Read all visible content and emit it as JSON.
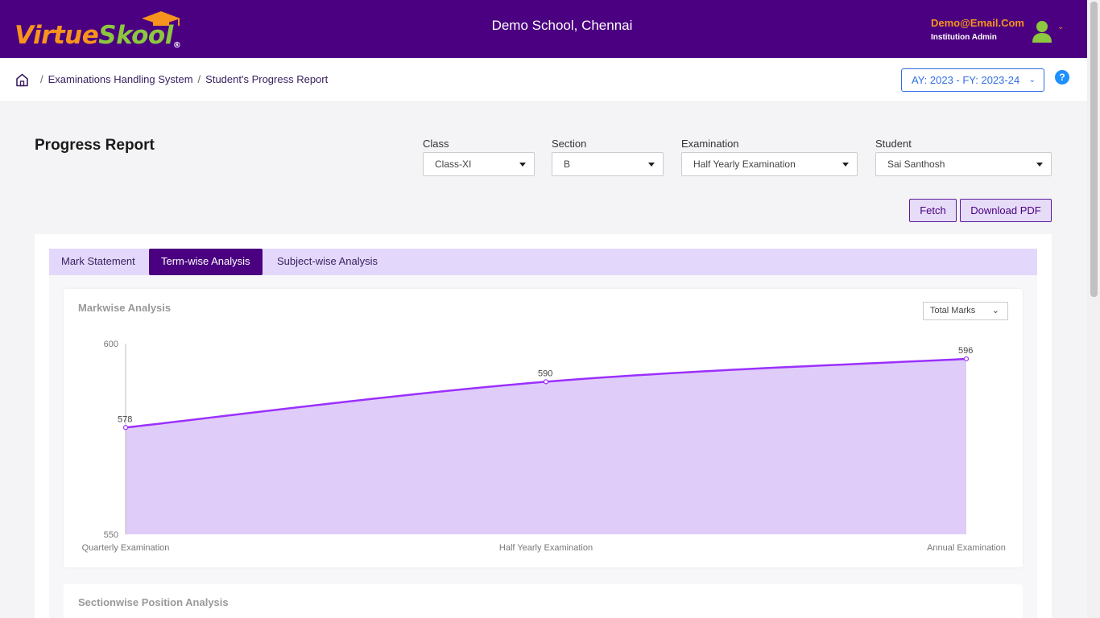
{
  "header": {
    "logo_part1": "Virtue",
    "logo_part2": "Skool",
    "logo_reg": "®",
    "school": "Demo School, Chennai",
    "user_email": "Demo@Email.Com",
    "user_role": "Institution Admin",
    "icons": [
      "graduation-cap-icon",
      "user-avatar-icon",
      "chevron-down-icon"
    ]
  },
  "breadcrumb": {
    "items": [
      "Examinations Handling System",
      "Student's Progress Report"
    ],
    "separator": "/",
    "ay_label": "AY: 2023 - FY: 2023-24",
    "help": "?"
  },
  "page": {
    "title": "Progress Report",
    "filters": {
      "class": {
        "label": "Class",
        "value": "Class-XI"
      },
      "section": {
        "label": "Section",
        "value": "B"
      },
      "exam": {
        "label": "Examination",
        "value": "Half Yearly Examination"
      },
      "student": {
        "label": "Student",
        "value": "Sai Santhosh"
      }
    },
    "fetch_label": "Fetch",
    "pdf_label": "Download PDF"
  },
  "tabs": [
    "Mark Statement",
    "Term-wise Analysis",
    "Subject-wise Analysis"
  ],
  "active_tab": "Term-wise Analysis",
  "markwise": {
    "title": "Markwise Analysis",
    "metric": "Total Marks"
  },
  "sectionwise": {
    "title": "Sectionwise Position Analysis"
  },
  "colors": {
    "header": "#4a0080",
    "accent_orange": "#f7941d",
    "logo_green": "#8dc63f",
    "line": "#9b30ff",
    "fill": "#e0ccf8"
  },
  "chart_data": {
    "type": "area",
    "categories": [
      "Quarterly Examination",
      "Half Yearly Examination",
      "Annual Examination"
    ],
    "values": [
      578,
      590,
      596
    ],
    "ylim": [
      550,
      600
    ],
    "yticks": [
      600,
      550
    ],
    "title": "Markwise Analysis",
    "xlabel": "",
    "ylabel": "",
    "grid": false
  }
}
